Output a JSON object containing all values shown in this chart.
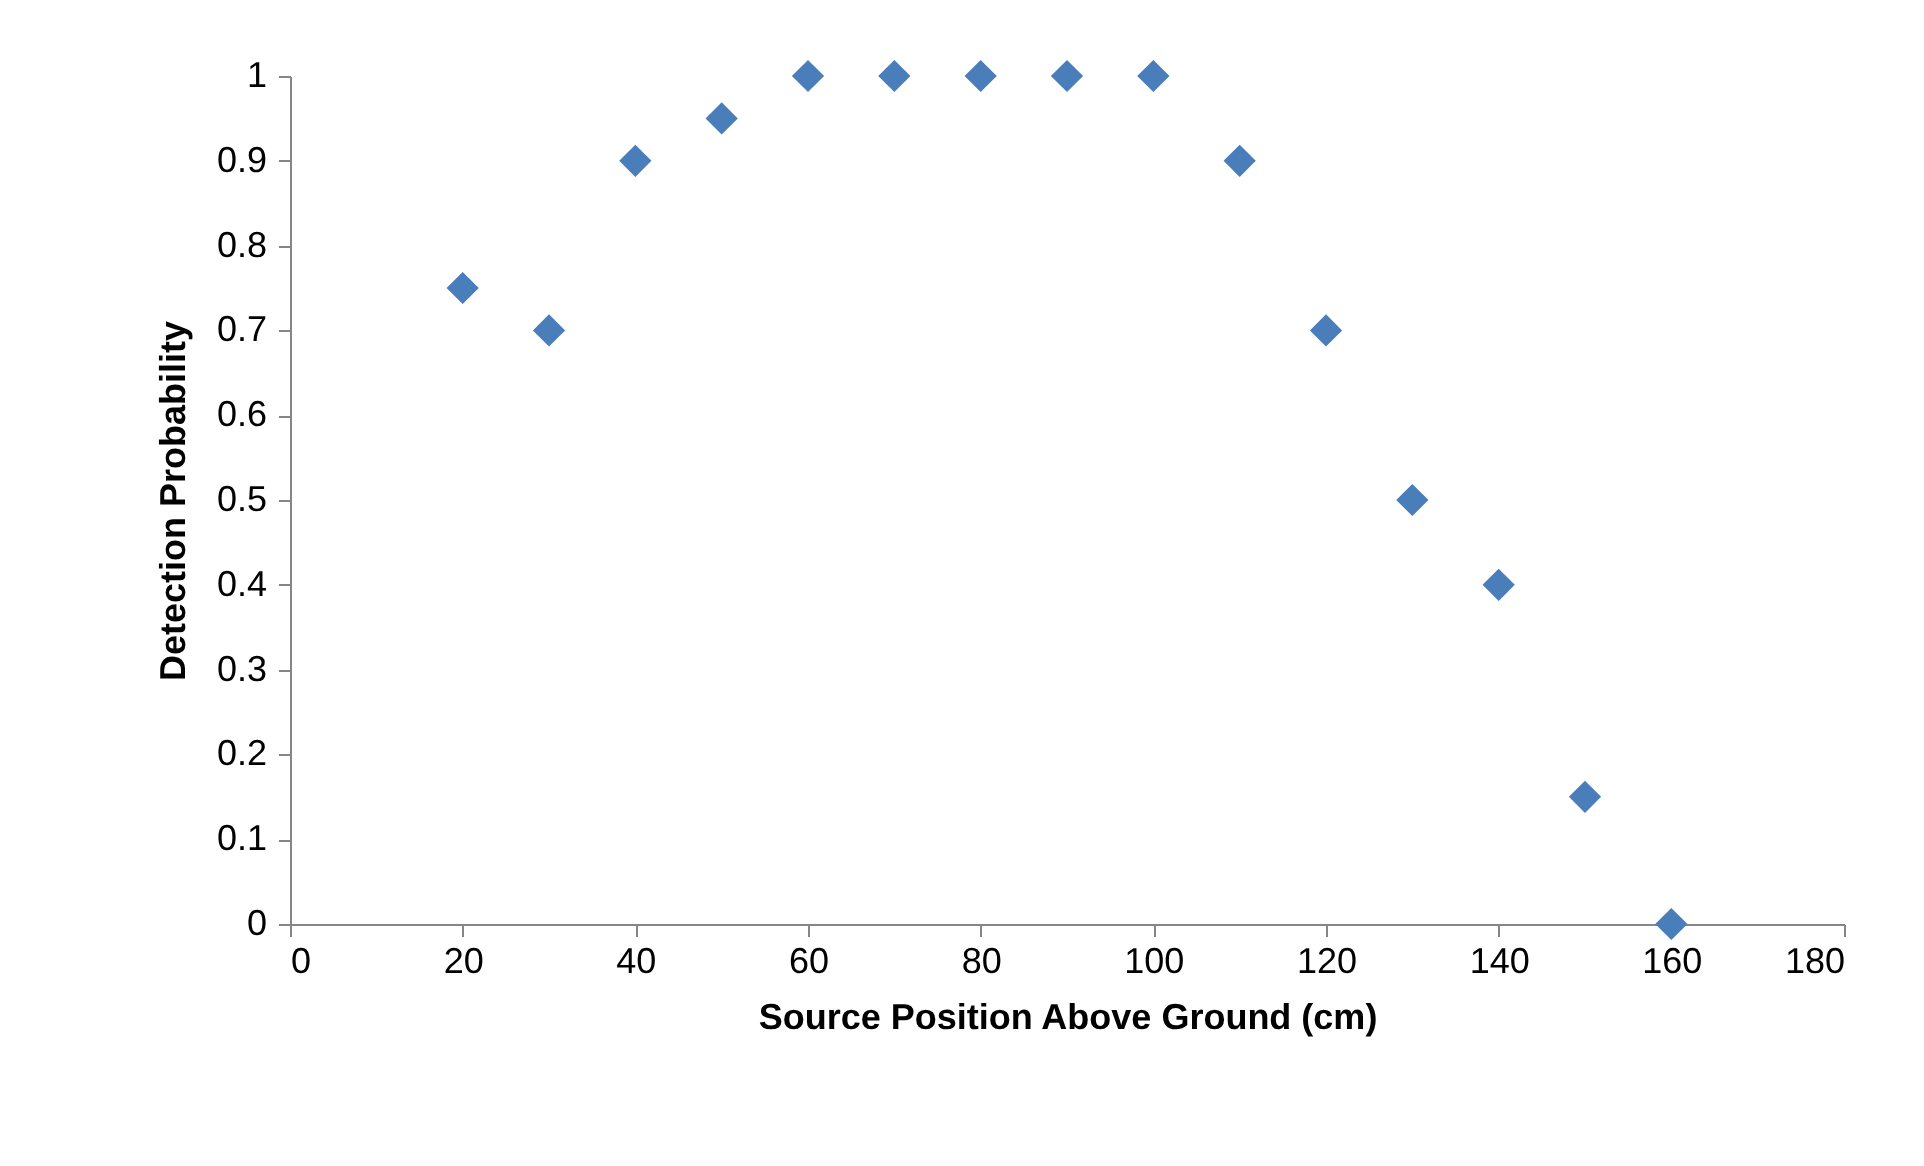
{
  "chart_data": {
    "type": "scatter",
    "xlabel": "Source Position Above Ground (cm)",
    "ylabel": "Detection Probability",
    "x": [
      20,
      30,
      40,
      50,
      60,
      70,
      80,
      90,
      100,
      110,
      120,
      130,
      140,
      150,
      160
    ],
    "series": [
      {
        "color": "#4a7ebb",
        "values": [
          0.75,
          0.7,
          0.9,
          0.95,
          1,
          1,
          1,
          1,
          1,
          0.9,
          0.7,
          0.5,
          0.4,
          0.15,
          0
        ]
      }
    ],
    "xlim": [
      0,
      180
    ],
    "xticks": [
      0,
      20,
      40,
      60,
      80,
      100,
      120,
      140,
      160,
      180
    ],
    "ylim": [
      0,
      1
    ],
    "yticks": [
      0,
      0.1,
      0.2,
      0.3,
      0.4,
      0.5,
      0.6,
      0.7,
      0.8,
      0.9,
      1
    ],
    "grid": false,
    "marker": "diamond"
  }
}
